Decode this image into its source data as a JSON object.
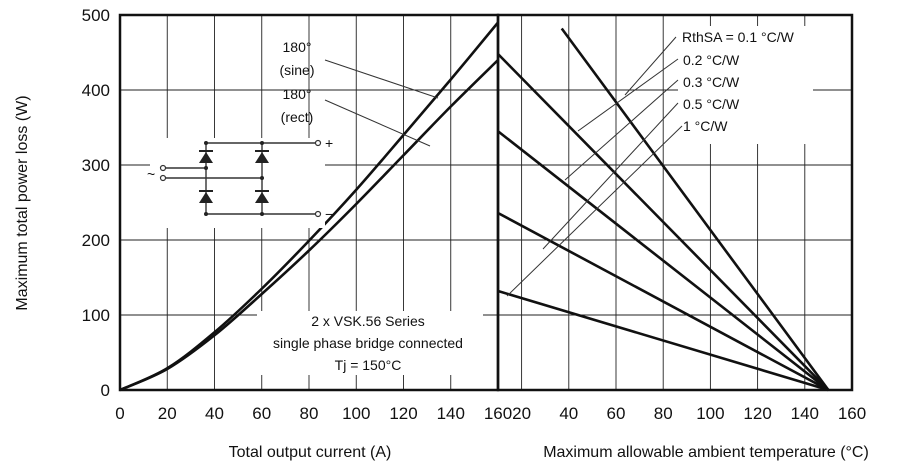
{
  "chart_data": [
    {
      "type": "line",
      "panel": "left",
      "xlabel": "Total output current (A)",
      "ylabel": "Maximum total power loss (W)",
      "xlim": [
        0,
        160
      ],
      "ylim": [
        0,
        500
      ],
      "xticks": [
        0,
        20,
        40,
        60,
        80,
        100,
        120,
        140,
        160
      ],
      "yticks": [
        0,
        100,
        200,
        300,
        400,
        500
      ],
      "grid": true,
      "series": [
        {
          "name": "180° (sine)",
          "x": [
            0,
            20,
            40,
            60,
            80,
            100,
            120,
            140,
            160
          ],
          "y": [
            0,
            29,
            77,
            135,
            199,
            267,
            340,
            414,
            490
          ]
        },
        {
          "name": "180° (rect)",
          "x": [
            0,
            20,
            40,
            60,
            80,
            100,
            120,
            140,
            160
          ],
          "y": [
            0,
            28,
            73,
            128,
            186,
            248,
            313,
            378,
            440
          ]
        }
      ],
      "annotations": {
        "sine_label_1": "180°",
        "sine_label_2": "(sine)",
        "rect_label_1": "180°",
        "rect_label_2": "(rect)",
        "note_1": "2 x VSK.56 Series",
        "note_2": "single phase bridge connected",
        "note_3": "Tj = 150°C"
      },
      "schematic": {
        "ac_symbol": "~",
        "plus_symbol": "+",
        "minus_symbol": "−"
      }
    },
    {
      "type": "line",
      "panel": "right",
      "xlabel": "Maximum allowable ambient temperature (°C)",
      "xlim": [
        10,
        160
      ],
      "ylim": [
        0,
        500
      ],
      "xticks": [
        20,
        40,
        60,
        80,
        100,
        120,
        140,
        160
      ],
      "grid": true,
      "series": [
        {
          "name": "RthSA = 0.1 °C/W",
          "x": [
            37,
            150
          ],
          "y": [
            482,
            0
          ]
        },
        {
          "name": "0.2 °C/W",
          "x": [
            10,
            150
          ],
          "y": [
            448,
            0
          ]
        },
        {
          "name": "0.3 °C/W",
          "x": [
            10,
            150
          ],
          "y": [
            345,
            0
          ]
        },
        {
          "name": "0.5 °C/W",
          "x": [
            10,
            150
          ],
          "y": [
            236,
            0
          ]
        },
        {
          "name": "1 °C/W",
          "x": [
            10,
            150
          ],
          "y": [
            132,
            0
          ]
        }
      ]
    }
  ]
}
